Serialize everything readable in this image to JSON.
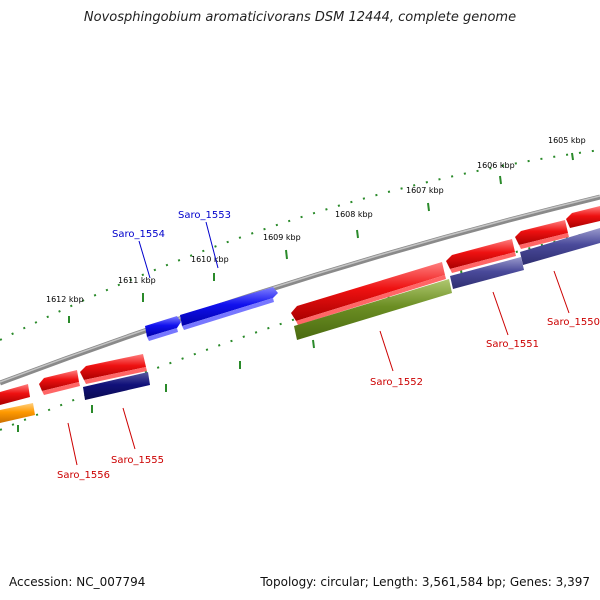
{
  "title": "Novosphingobium aromaticivorans DSM 12444, complete genome",
  "accession": "Accession: NC_007794",
  "summary": "Topology: circular; Length: 3,561,584 bp; Genes: 3,397",
  "ruler_labels": [
    "1605 kbp",
    "1606 kbp",
    "1607 kbp",
    "1608 kbp",
    "1609 kbp",
    "1610 kbp",
    "1611 kbp",
    "1612 kbp"
  ],
  "genes": {
    "saro_1550": "Saro_1550",
    "saro_1551": "Saro_1551",
    "saro_1552": "Saro_1552",
    "saro_1553": "Saro_1553",
    "saro_1554": "Saro_1554",
    "saro_1555": "Saro_1555",
    "saro_1556": "Saro_1556"
  },
  "colors": {
    "red": "#ee1111",
    "blue": "#1111ee",
    "navy": "#11117a",
    "slate": "#4a4a9a",
    "olive": "#6b8e23",
    "orange": "#ff9a00",
    "ruler": "#2a8a2a",
    "backbone": "#8a8a8a",
    "label_red": "#cc0000",
    "label_blue": "#0000cc"
  }
}
